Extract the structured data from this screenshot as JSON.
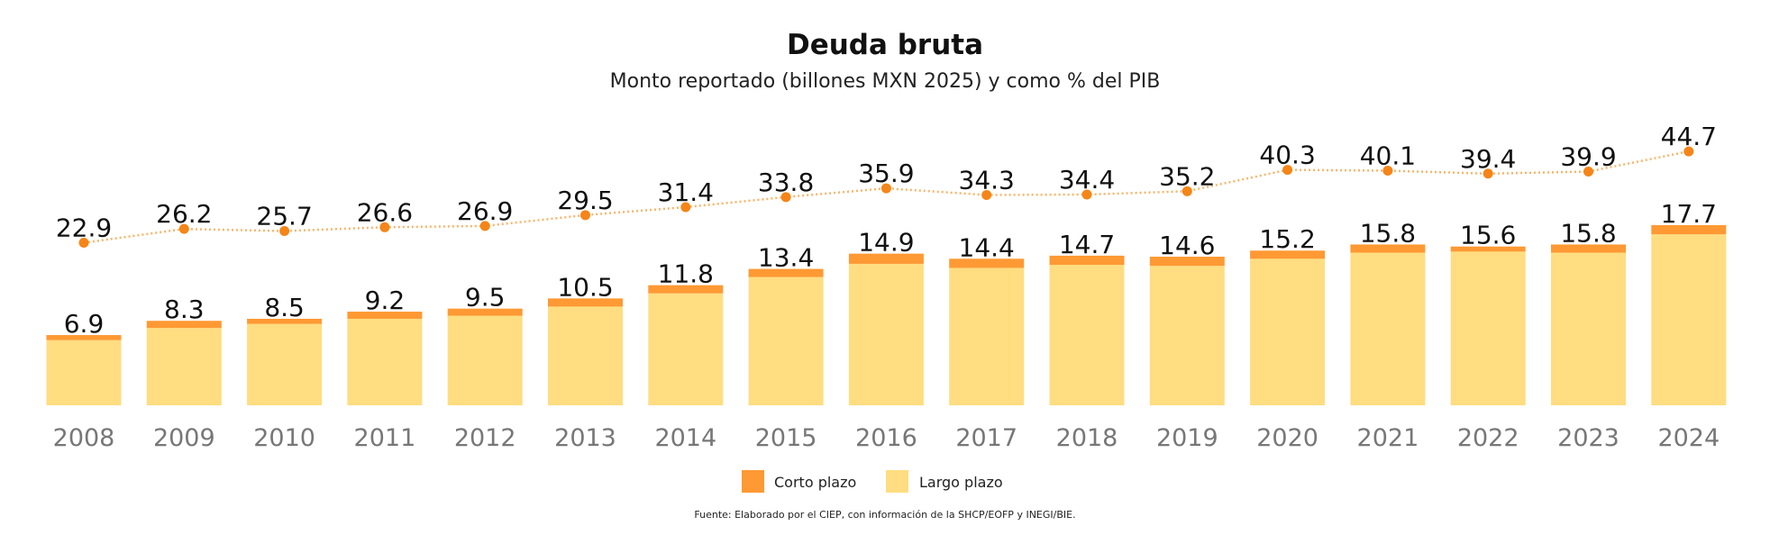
{
  "chart_data": {
    "type": "bar",
    "title": "Deuda bruta",
    "subtitle": "Monto reportado (billones MXN 2025) y como % del PIB",
    "categories": [
      "2008",
      "2009",
      "2010",
      "2011",
      "2012",
      "2013",
      "2014",
      "2015",
      "2016",
      "2017",
      "2018",
      "2019",
      "2020",
      "2021",
      "2022",
      "2023",
      "2024"
    ],
    "series": [
      {
        "name": "Largo plazo",
        "kind": "bar",
        "color": "#FFDD80",
        "values": [
          6.4,
          7.6,
          8.0,
          8.5,
          8.8,
          9.7,
          11.0,
          12.6,
          13.9,
          13.5,
          13.8,
          13.7,
          14.4,
          15.0,
          15.1,
          15.0,
          16.8
        ]
      },
      {
        "name": "Corto plazo",
        "kind": "bar",
        "color": "#FF9933",
        "values": [
          0.5,
          0.7,
          0.5,
          0.7,
          0.7,
          0.8,
          0.8,
          0.8,
          1.0,
          0.9,
          0.9,
          0.9,
          0.8,
          0.8,
          0.5,
          0.8,
          0.9
        ]
      },
      {
        "kind": "line",
        "color": "#F58518",
        "values": [
          22.9,
          26.2,
          25.7,
          26.6,
          26.9,
          29.5,
          31.4,
          33.8,
          35.9,
          34.3,
          34.4,
          35.2,
          40.3,
          40.1,
          39.4,
          39.9,
          44.7
        ]
      }
    ],
    "totals": [
      6.9,
      8.3,
      8.5,
      9.2,
      9.5,
      10.5,
      11.8,
      13.4,
      14.9,
      14.4,
      14.7,
      14.6,
      15.2,
      15.8,
      15.6,
      15.8,
      17.7
    ],
    "legend": {
      "position": "bottom",
      "entries": [
        "Corto plazo",
        "Largo plazo"
      ]
    },
    "grid": false,
    "ylim_bars": [
      0,
      30
    ],
    "ylim_line": [
      0,
      60
    ],
    "source": "Fuente: Elaborado por el CIEP, con información de la SHCP/EOFP y INEGI/BIE."
  }
}
